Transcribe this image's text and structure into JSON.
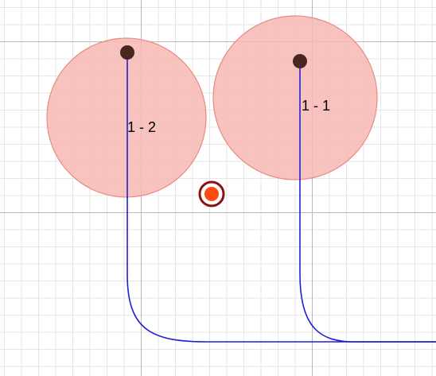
{
  "colors": {
    "background": "#ffffff",
    "grid_minor": "#e6e6e6",
    "grid_major": "#b9b9b9",
    "circle_fill": "#f7b7b3",
    "circle_stroke": "#e88a82",
    "curve": "#1f1fd6",
    "anchor_point": "#4a2622",
    "center_point_fill": "#ff4a12",
    "center_point_ring": "#8b1010"
  },
  "labels": {
    "circle_a": "1 - 2",
    "circle_b": "1 - 1"
  }
}
